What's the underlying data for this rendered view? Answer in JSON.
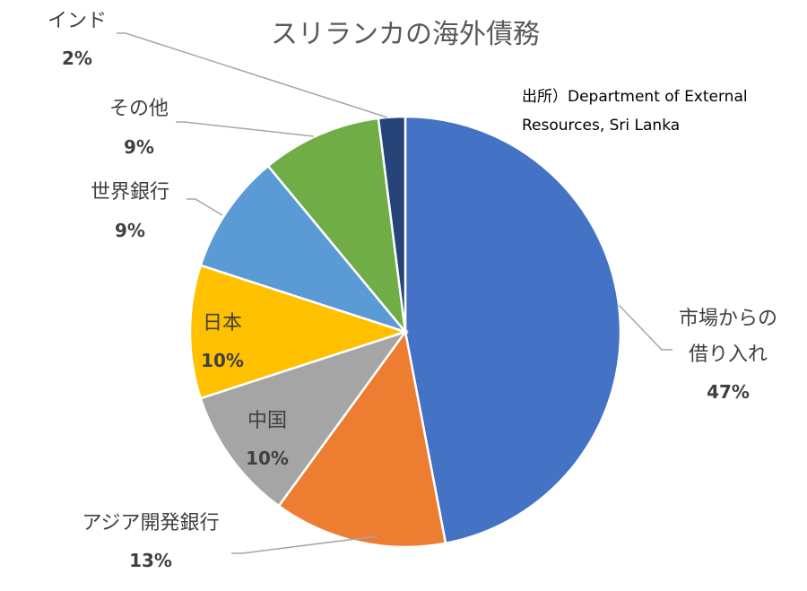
{
  "chart_data": {
    "type": "pie",
    "title": "スリランカの海外債務",
    "source": [
      "出所）Department of External",
      "Resources, Sri Lanka"
    ],
    "slices": [
      {
        "label": [
          "市場からの",
          "借り入れ"
        ],
        "value_label": "47%",
        "value": 47,
        "color": "#4472c4"
      },
      {
        "label": [
          "アジア開発銀行"
        ],
        "value_label": "13%",
        "value": 13,
        "color": "#ed7d31"
      },
      {
        "label": [
          "中国"
        ],
        "value_label": "10%",
        "value": 10,
        "color": "#a5a5a5"
      },
      {
        "label": [
          "日本"
        ],
        "value_label": "10%",
        "value": 10,
        "color": "#ffc000"
      },
      {
        "label": [
          "世界銀行"
        ],
        "value_label": "9%",
        "value": 9,
        "color": "#5b9bd5"
      },
      {
        "label": [
          "その他"
        ],
        "value_label": "9%",
        "value": 9,
        "color": "#70ad47"
      },
      {
        "label": [
          "インド"
        ],
        "value_label": "2%",
        "value": 2,
        "color": "#264478"
      }
    ]
  }
}
